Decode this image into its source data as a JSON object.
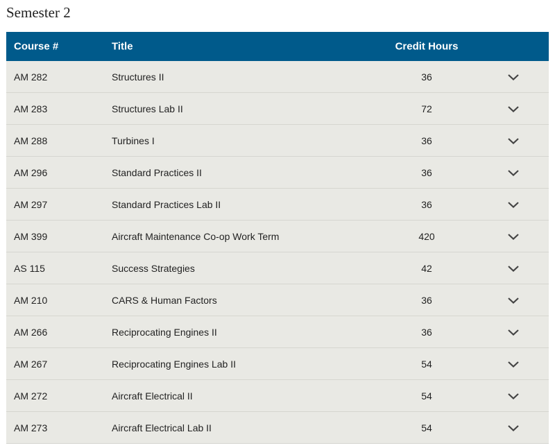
{
  "heading": "Semester 2",
  "table": {
    "header": [
      "Course #",
      "Title",
      "Credit Hours"
    ],
    "rows": [
      [
        "AM 282",
        "Structures II",
        36
      ],
      [
        "AM 283",
        "Structures Lab II",
        72
      ],
      [
        "AM 288",
        "Turbines I",
        36
      ],
      [
        "AM 296",
        "Standard Practices II",
        36
      ],
      [
        "AM 297",
        "Standard Practices Lab II",
        36
      ],
      [
        "AM 399",
        "Aircraft Maintenance Co-op Work Term",
        420
      ],
      [
        "AS 115",
        "Success Strategies",
        42
      ],
      [
        "AM 210",
        "CARS & Human Factors",
        36
      ],
      [
        "AM 266",
        "Reciprocating Engines II",
        36
      ],
      [
        "AM 267",
        "Reciprocating Engines Lab II",
        54
      ],
      [
        "AM 272",
        "Aircraft Electrical II",
        54
      ],
      [
        "AM 273",
        "Aircraft Electrical Lab II",
        54
      ]
    ]
  }
}
